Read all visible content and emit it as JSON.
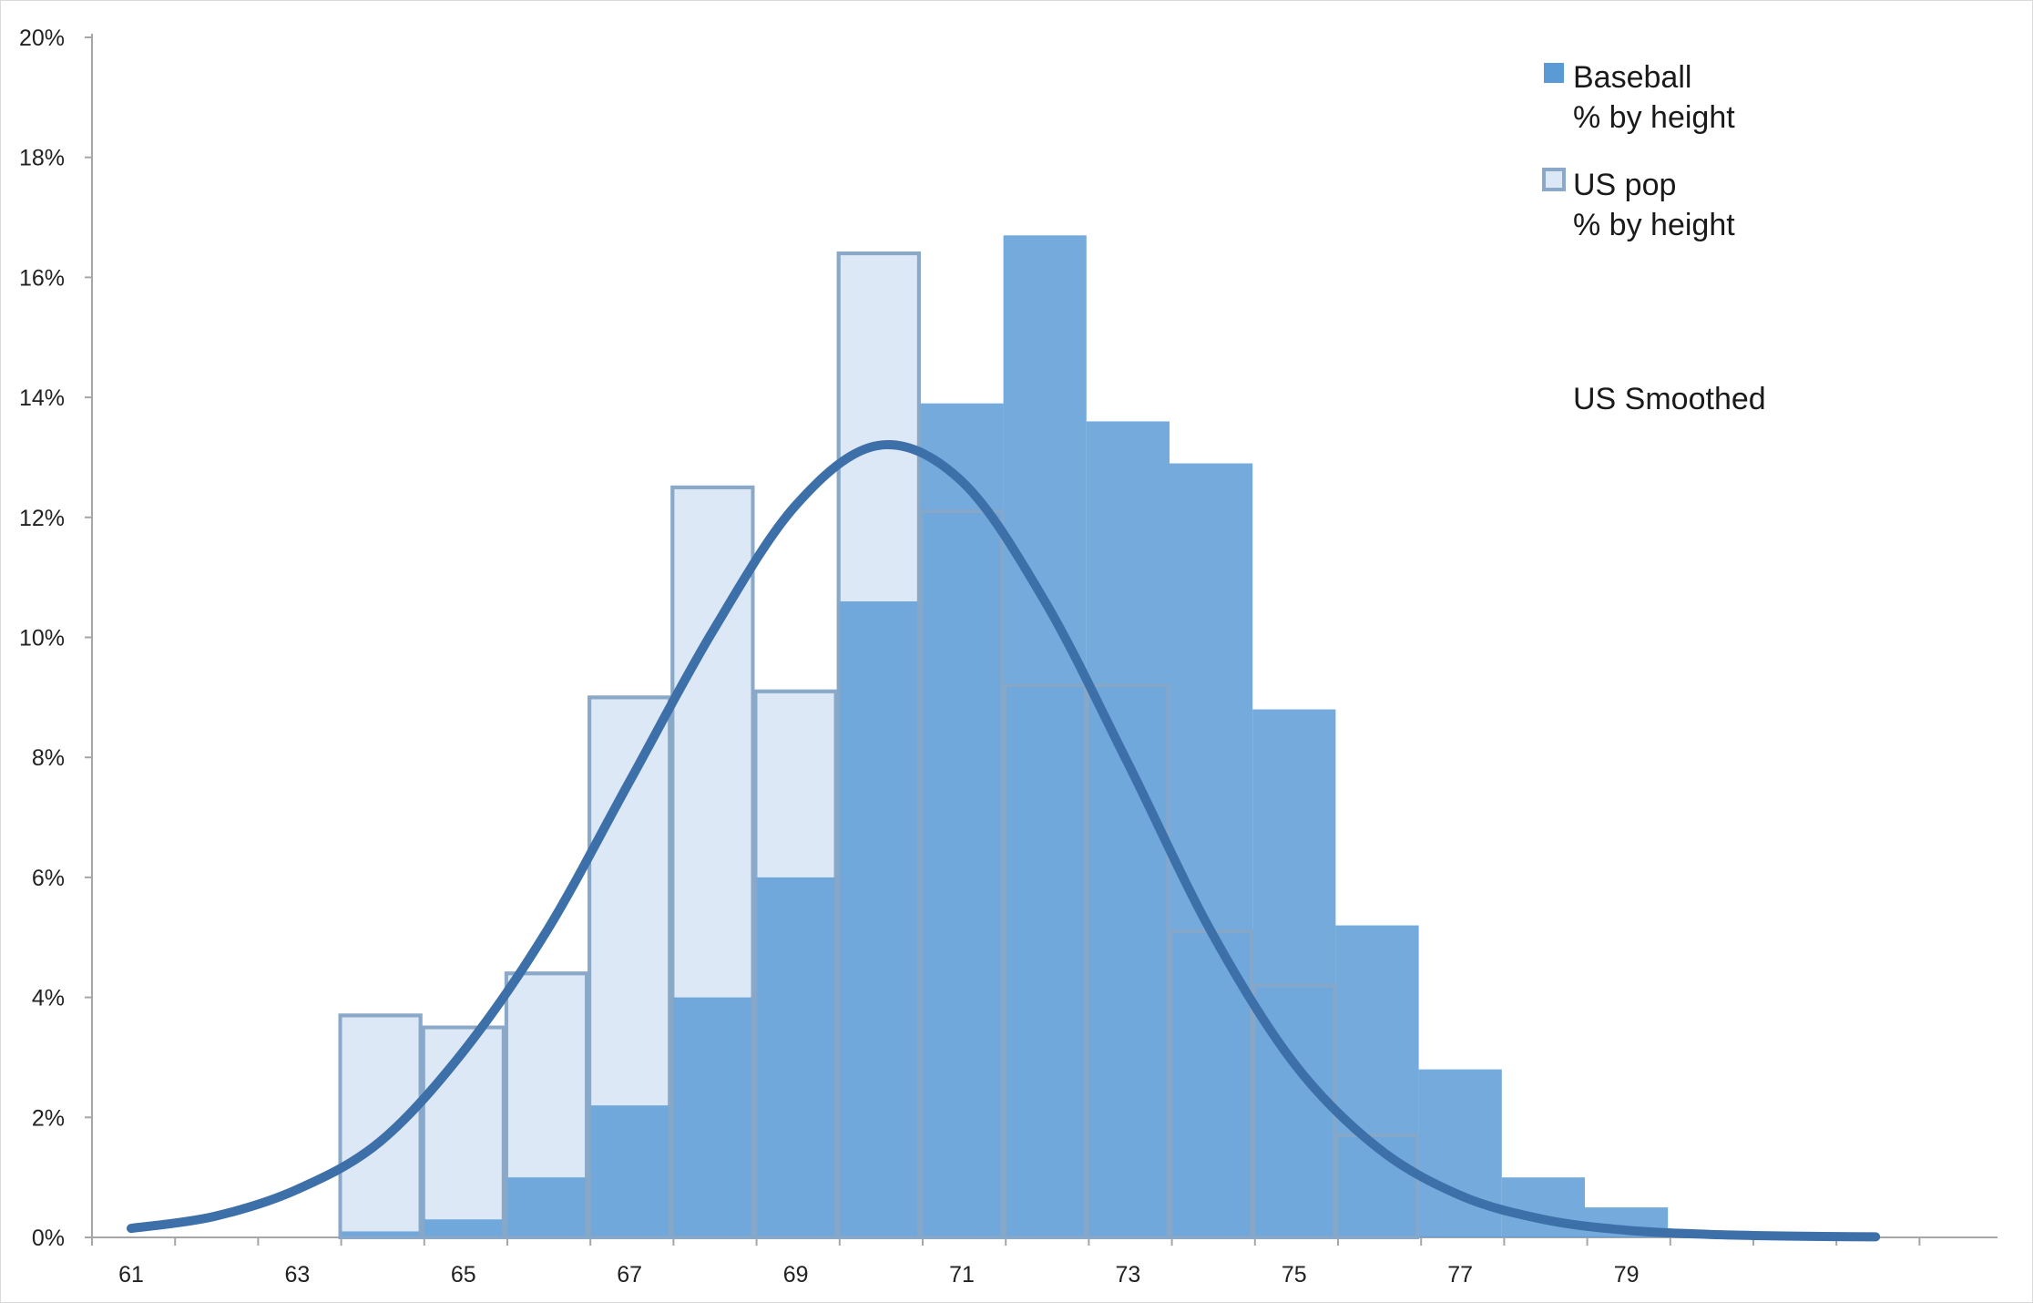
{
  "chart_data": {
    "type": "bar",
    "xlabel": "",
    "ylabel": "",
    "x_tick_labels": [
      "61",
      "63",
      "65",
      "67",
      "69",
      "71",
      "73",
      "75",
      "77",
      "79"
    ],
    "y_tick_labels": [
      "0%",
      "2%",
      "4%",
      "6%",
      "8%",
      "10%",
      "12%",
      "14%",
      "16%",
      "18%",
      "20%"
    ],
    "ylim": [
      0,
      20
    ],
    "y_unit": "%",
    "grid": false,
    "legend_position": "top-right",
    "bar_x": [
      63,
      64,
      65,
      66,
      67,
      68,
      69,
      70,
      71,
      72,
      73,
      74,
      75,
      76,
      77,
      78,
      79,
      80
    ],
    "series": [
      {
        "name": "Baseball\n% by height",
        "legend_lines": [
          "Baseball",
          "% by height"
        ],
        "style": "filled",
        "color": "#5b9bd5",
        "values": [
          0.0,
          0.1,
          0.3,
          1.0,
          2.2,
          4.0,
          6.0,
          10.6,
          13.9,
          16.7,
          13.6,
          12.9,
          8.8,
          5.2,
          2.8,
          1.0,
          0.5,
          0.1
        ]
      },
      {
        "name": "US pop\n% by height",
        "legend_lines": [
          "US pop",
          "% by height"
        ],
        "style": "outlined",
        "color": "#8aa8c8",
        "fill": "#dde8f6",
        "values": [
          0.0,
          3.7,
          3.5,
          4.4,
          9.0,
          12.5,
          9.1,
          16.4,
          12.1,
          9.2,
          9.2,
          5.1,
          4.2,
          1.7,
          0.0,
          0.0,
          0.0,
          0.0
        ]
      },
      {
        "name": "US Smoothed",
        "legend_lines": [
          "US Smoothed"
        ],
        "style": "line",
        "color": "#3d6fa8",
        "x": [
          61,
          62,
          63,
          64,
          65,
          66,
          67,
          68,
          69,
          70,
          71,
          72,
          73,
          74,
          75,
          76,
          77,
          78,
          79,
          80,
          81,
          82
        ],
        "values": [
          0.15,
          0.35,
          0.8,
          1.6,
          3.1,
          5.1,
          7.6,
          10.1,
          12.2,
          13.2,
          12.6,
          10.6,
          7.9,
          5.1,
          2.9,
          1.5,
          0.7,
          0.3,
          0.12,
          0.05,
          0.02,
          0.01
        ]
      }
    ]
  }
}
